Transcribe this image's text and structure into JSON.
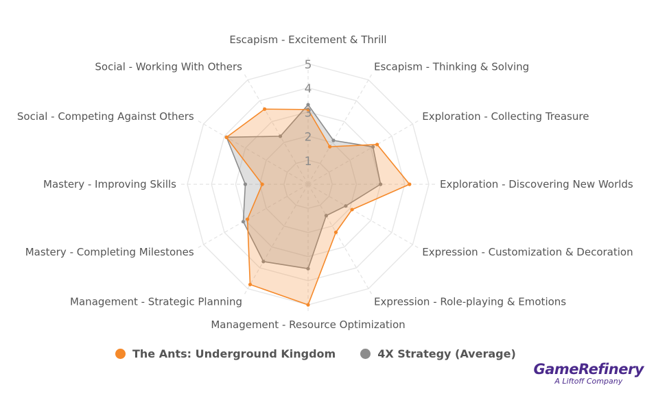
{
  "chart_data": {
    "type": "radar",
    "title": "",
    "categories": [
      "Escapism - Excitement & Thrill",
      "Escapism - Thinking & Solving",
      "Exploration - Collecting Treasure",
      "Exploration - Discovering New Worlds",
      "Expression - Customization & Decoration",
      "Expression - Role-playing & Emotions",
      "Management - Resource Optimization",
      "Management - Strategic Planning",
      "Mastery - Completing Milestones",
      "Mastery - Improving Skills",
      "Social - Competing Against Others",
      "Social - Working With Others"
    ],
    "rlim": [
      0,
      5
    ],
    "ticks": [
      "1",
      "2",
      "3",
      "4",
      "5"
    ],
    "grid": true,
    "series": [
      {
        "name": "The Ants: Underground Kingdom",
        "color": "#f5892a",
        "values": [
          3.1,
          1.8,
          3.3,
          4.2,
          2.1,
          2.3,
          5.0,
          4.8,
          2.9,
          1.9,
          3.9,
          3.6
        ]
      },
      {
        "name": "4X Strategy (Average)",
        "color": "#8c8c8c",
        "values": [
          3.3,
          2.1,
          3.1,
          3.0,
          1.8,
          1.5,
          3.5,
          3.7,
          3.1,
          2.6,
          3.9,
          2.3
        ]
      }
    ]
  },
  "logo": {
    "main": "GameRefinery",
    "sub": "A Liftoff Company",
    "color": "#4b2a8c"
  }
}
